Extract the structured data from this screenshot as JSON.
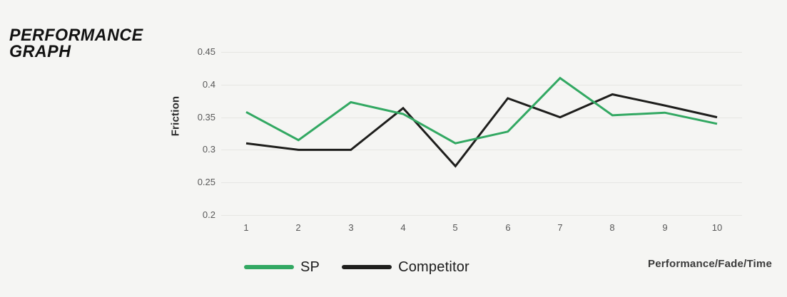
{
  "title": {
    "line1": "PERFORMANCE",
    "line2": "GRAPH"
  },
  "chart_data": {
    "type": "line",
    "x": [
      1,
      2,
      3,
      4,
      5,
      6,
      7,
      8,
      9,
      10
    ],
    "series": [
      {
        "name": "SP",
        "color": "#32a862",
        "values": [
          0.358,
          0.315,
          0.373,
          0.355,
          0.31,
          0.328,
          0.41,
          0.353,
          0.357,
          0.34
        ]
      },
      {
        "name": "Competitor",
        "color": "#1e1e1c",
        "values": [
          0.31,
          0.3,
          0.3,
          0.364,
          0.275,
          0.379,
          0.35,
          0.385,
          0.368,
          0.35
        ]
      }
    ],
    "title": "PERFORMANCE GRAPH",
    "ylabel": "Friction",
    "xlabel": "Performance/Fade/Time",
    "ylim": [
      0.2,
      0.45
    ],
    "yticks": [
      0.45,
      0.4,
      0.35,
      0.3,
      0.25,
      0.2
    ],
    "ytick_labels": [
      "0.45",
      "0.4",
      "0.35",
      "0.3",
      "0.25",
      "0.2"
    ],
    "xtick_labels": [
      "1",
      "2",
      "3",
      "4",
      "5",
      "6",
      "7",
      "8",
      "9",
      "10"
    ],
    "grid": true,
    "legend_position": "bottom"
  },
  "colors": {
    "background": "#f5f5f3",
    "gridline": "#e6e6e3",
    "tick_text": "#585858",
    "sp_green": "#32a862",
    "competitor_black": "#1e1e1c"
  }
}
